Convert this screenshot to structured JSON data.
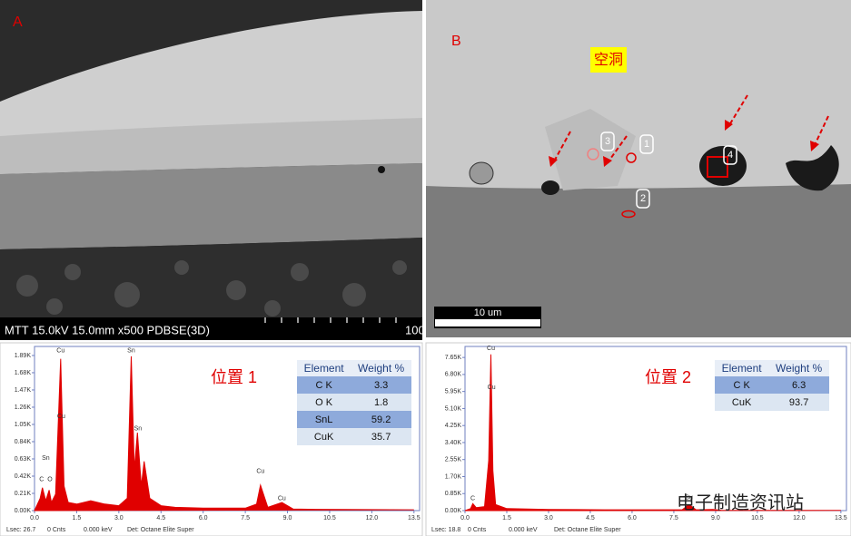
{
  "panel_a": {
    "label": "A",
    "caption": "MTT 15.0kV 15.0mm x500 PDBSE(3D)",
    "scale_text": "100"
  },
  "panel_b": {
    "label": "B",
    "void_label": "空洞",
    "markers": [
      "1",
      "2",
      "3",
      "4"
    ],
    "scale_bar": "10 um"
  },
  "chart_data": [
    {
      "type": "area",
      "site_label": "位置 1",
      "color": "#e00000",
      "x": [
        0,
        0.2,
        0.28,
        0.4,
        0.52,
        0.6,
        0.75,
        0.93,
        1.05,
        1.2,
        1.5,
        2.0,
        2.5,
        3.0,
        3.3,
        3.44,
        3.55,
        3.66,
        3.8,
        3.9,
        4.1,
        4.5,
        5.0,
        6.0,
        7.5,
        7.9,
        8.04,
        8.3,
        8.8,
        9.2,
        10.0,
        13.5
      ],
      "values": [
        0,
        150,
        280,
        120,
        250,
        100,
        200,
        1850,
        300,
        100,
        80,
        120,
        80,
        60,
        150,
        1880,
        500,
        950,
        300,
        600,
        150,
        60,
        40,
        30,
        30,
        80,
        310,
        40,
        100,
        20,
        15,
        10
      ],
      "xlim": [
        0,
        13.7
      ],
      "ylim": [
        0,
        2000
      ],
      "xticks": [
        {
          "value": 0,
          "label": "0.0"
        },
        1.5,
        {
          "value": 3,
          "label": "3.0"
        },
        4.5,
        {
          "value": 6,
          "label": "6.0"
        },
        7.5,
        {
          "value": 9,
          "label": "9.0"
        },
        10.5,
        {
          "value": 12,
          "label": "12.0"
        },
        13.5
      ],
      "yticks": [
        {
          "value": 0,
          "label": "0.00K"
        },
        {
          "value": 210,
          "label": "0.21K"
        },
        {
          "value": 420,
          "label": "0.42K"
        },
        {
          "value": 630,
          "label": "0.63K"
        },
        {
          "value": 840,
          "label": "0.84K"
        },
        {
          "value": 1050,
          "label": "1.05K"
        },
        {
          "value": 1260,
          "label": "1.26K"
        },
        {
          "value": 1470,
          "label": "1.47K"
        },
        {
          "value": 1680,
          "label": "1.68K"
        },
        {
          "value": 1890,
          "label": "1.89K"
        }
      ],
      "annotations": [
        {
          "text": "Sn",
          "x": 0.4,
          "y": 640
        },
        {
          "text": "C",
          "x": 0.25,
          "y": 380
        },
        {
          "text": "O",
          "x": 0.55,
          "y": 380
        },
        {
          "text": "Cu",
          "x": 0.93,
          "y": 1950
        },
        {
          "text": "Cu",
          "x": 0.95,
          "y": 1150
        },
        {
          "text": "Sn",
          "x": 3.44,
          "y": 1950
        },
        {
          "text": "Sn",
          "x": 3.68,
          "y": 1000
        },
        {
          "text": "Cu",
          "x": 8.04,
          "y": 480
        },
        {
          "text": "Cu",
          "x": 8.8,
          "y": 150
        }
      ],
      "table": {
        "header": [
          "Element",
          "Weight %"
        ],
        "rows": [
          [
            "C K",
            3.3
          ],
          [
            "O K",
            1.8
          ],
          [
            "SnL",
            59.2
          ],
          [
            "CuK",
            35.7
          ]
        ]
      },
      "footer": [
        "Lsec: 26.7",
        "0 Cnts",
        "0.000 keV",
        "Det: Octane Elite Super"
      ]
    },
    {
      "type": "area",
      "site_label": "位置 2",
      "color": "#e00000",
      "x": [
        0,
        0.2,
        0.28,
        0.4,
        0.7,
        0.85,
        0.93,
        1.0,
        1.1,
        1.5,
        3.0,
        5.0,
        7.8,
        8.04,
        8.3,
        8.9,
        9.2,
        13.5
      ],
      "values": [
        0,
        100,
        350,
        150,
        200,
        2500,
        7800,
        2000,
        300,
        100,
        60,
        40,
        40,
        300,
        40,
        60,
        20,
        10
      ],
      "xlim": [
        0,
        13.7
      ],
      "ylim": [
        0,
        8200
      ],
      "xticks": [
        {
          "value": 0,
          "label": "0.0"
        },
        1.5,
        {
          "value": 3,
          "label": "3.0"
        },
        4.5,
        {
          "value": 6,
          "label": "6.0"
        },
        7.5,
        {
          "value": 9,
          "label": "9.0"
        },
        10.5,
        {
          "value": 12,
          "label": "12.0"
        },
        13.5
      ],
      "yticks": [
        {
          "value": 0,
          "label": "0.00K"
        },
        {
          "value": 850,
          "label": "0.85K"
        },
        {
          "value": 1700,
          "label": "1.70K"
        },
        {
          "value": 2550,
          "label": "2.55K"
        },
        {
          "value": 3400,
          "label": "3.40K"
        },
        {
          "value": 4250,
          "label": "4.25K"
        },
        {
          "value": 5100,
          "label": "5.10K"
        },
        {
          "value": 5950,
          "label": "5.95K"
        },
        {
          "value": 6800,
          "label": "6.80K"
        },
        {
          "value": 7650,
          "label": "7.65K"
        }
      ],
      "annotations": [
        {
          "text": "C",
          "x": 0.28,
          "y": 600
        },
        {
          "text": "Cu",
          "x": 0.93,
          "y": 8100
        },
        {
          "text": "Cu",
          "x": 0.95,
          "y": 6150
        },
        {
          "text": "Cu",
          "x": 8.04,
          "y": 650
        }
      ],
      "table": {
        "header": [
          "Element",
          "Weight %"
        ],
        "rows": [
          [
            "C K",
            6.3
          ],
          [
            "CuK",
            93.7
          ]
        ]
      },
      "footer": [
        "Lsec: 18.8",
        "0 Cnts",
        "0.000 keV",
        "Det: Octane Elite Super"
      ]
    }
  ],
  "watermark": "电子制造资讯站"
}
